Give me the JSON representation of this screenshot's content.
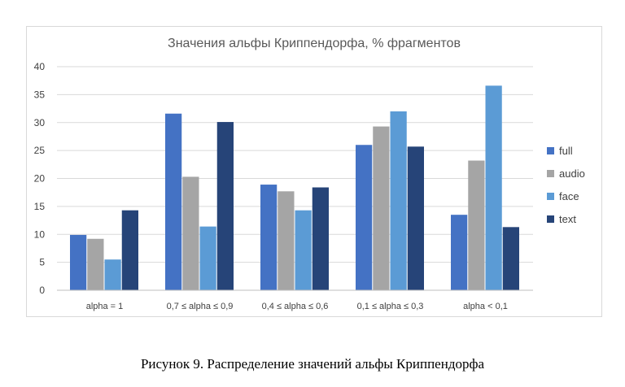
{
  "chart_data": {
    "type": "bar",
    "title": "Значения альфы Криппендорфа, % фрагментов",
    "categories": [
      "alpha = 1",
      "0,7 ≤ alpha ≤ 0,9",
      "0,4 ≤ alpha ≤ 0,6",
      "0,1 ≤ alpha ≤ 0,3",
      "alpha < 0,1"
    ],
    "series": [
      {
        "name": "full",
        "color": "#4472c4",
        "values": [
          9.9,
          31.6,
          18.9,
          26.0,
          13.5
        ]
      },
      {
        "name": "audio",
        "color": "#a5a5a5",
        "values": [
          9.2,
          20.3,
          17.7,
          29.3,
          23.2
        ]
      },
      {
        "name": "face",
        "color": "#5b9bd5",
        "values": [
          5.5,
          11.4,
          14.3,
          32.0,
          36.6
        ]
      },
      {
        "name": "text",
        "color": "#264478",
        "values": [
          14.3,
          30.1,
          18.4,
          25.7,
          11.3
        ]
      }
    ],
    "ylim": [
      0,
      40
    ],
    "yticks": [
      0,
      5,
      10,
      15,
      20,
      25,
      30,
      35,
      40
    ],
    "grid": true,
    "legend": "right",
    "xlabel": "",
    "ylabel": ""
  },
  "caption": "Рисунок 9. Распределение значений альфы Криппендорфа"
}
